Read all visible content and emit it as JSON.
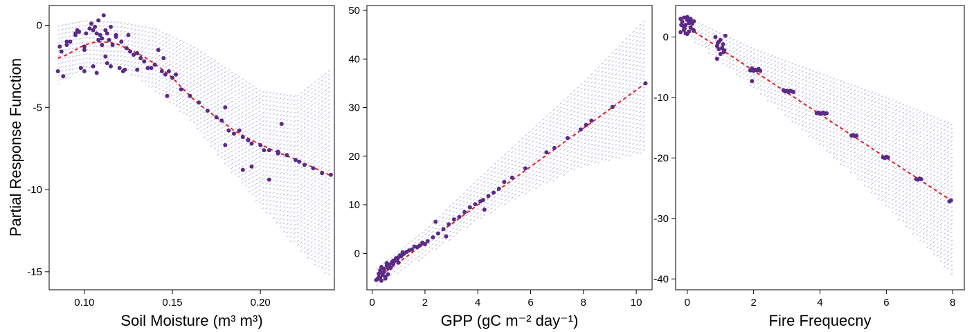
{
  "ylabel": "Partial Response Function",
  "colors": {
    "point": "#5b2a86",
    "fit": "#e02020",
    "band": "#8a86c4",
    "frame": "#000000"
  },
  "chart_data": [
    {
      "type": "scatter",
      "xlabel": "Soil Moisture (m³ m³)",
      "xlim": [
        0.08,
        0.242
      ],
      "ylim": [
        -16.1,
        1.2
      ],
      "xticks": [
        0.1,
        0.15,
        0.2
      ],
      "xtick_labels": [
        "0.10",
        "0.15",
        "0.20"
      ],
      "yticks": [
        0,
        -5,
        -10,
        -15
      ],
      "ytick_labels": [
        "0",
        "-5",
        "-10",
        "-15"
      ],
      "fit": {
        "x": [
          0.085,
          0.09,
          0.095,
          0.1,
          0.105,
          0.11,
          0.115,
          0.12,
          0.125,
          0.13,
          0.135,
          0.14,
          0.145,
          0.15,
          0.155,
          0.16,
          0.165,
          0.17,
          0.175,
          0.18,
          0.185,
          0.19,
          0.195,
          0.2,
          0.205,
          0.21,
          0.215,
          0.22,
          0.225,
          0.23,
          0.235,
          0.24
        ],
        "y": [
          -2.0,
          -1.8,
          -1.5,
          -1.2,
          -1.05,
          -1.0,
          -1.05,
          -1.2,
          -1.45,
          -1.7,
          -2.0,
          -2.35,
          -2.75,
          -3.2,
          -3.75,
          -4.3,
          -4.8,
          -5.2,
          -5.6,
          -6.0,
          -6.4,
          -6.7,
          -7.0,
          -7.25,
          -7.5,
          -7.75,
          -7.95,
          -8.15,
          -8.4,
          -8.65,
          -8.9,
          -9.15
        ]
      },
      "band": {
        "x": [
          0.085,
          0.1,
          0.12,
          0.14,
          0.16,
          0.18,
          0.2,
          0.22,
          0.24
        ],
        "upper": [
          0.0,
          0.3,
          0.2,
          -0.2,
          -1.2,
          -2.6,
          -4.0,
          -4.3,
          -2.6
        ],
        "lower": [
          -3.6,
          -2.5,
          -2.5,
          -4.0,
          -5.8,
          -8.5,
          -11.0,
          -13.5,
          -15.5
        ]
      },
      "points": {
        "x": [
          0.085,
          0.086,
          0.087,
          0.088,
          0.09,
          0.092,
          0.095,
          0.096,
          0.098,
          0.1,
          0.101,
          0.103,
          0.104,
          0.105,
          0.106,
          0.107,
          0.108,
          0.109,
          0.11,
          0.111,
          0.112,
          0.113,
          0.114,
          0.115,
          0.116,
          0.118,
          0.12,
          0.121,
          0.122,
          0.124,
          0.126,
          0.128,
          0.13,
          0.132,
          0.134,
          0.136,
          0.138,
          0.14,
          0.142,
          0.144,
          0.146,
          0.148,
          0.15,
          0.152,
          0.155,
          0.16,
          0.165,
          0.17,
          0.175,
          0.178,
          0.18,
          0.182,
          0.185,
          0.188,
          0.19,
          0.193,
          0.195,
          0.2,
          0.202,
          0.205,
          0.21,
          0.212,
          0.215,
          0.22,
          0.225,
          0.23,
          0.235,
          0.24,
          0.09,
          0.095,
          0.1,
          0.11,
          0.115,
          0.125,
          0.13,
          0.145,
          0.105,
          0.107,
          0.113,
          0.097,
          0.1,
          0.108,
          0.112,
          0.118,
          0.123,
          0.147,
          0.18,
          0.19,
          0.21,
          0.195,
          0.205,
          0.222
        ],
        "y": [
          -2.8,
          -1.3,
          -1.6,
          -3.1,
          -1.2,
          -1.0,
          -0.6,
          -0.3,
          -2.6,
          -2.8,
          -0.5,
          -0.2,
          0.1,
          -0.3,
          -0.1,
          -0.5,
          0.3,
          -0.6,
          -0.8,
          0.6,
          -0.3,
          -0.5,
          -0.9,
          -0.1,
          -1.2,
          -0.6,
          -2.6,
          -1.0,
          -2.8,
          -1.4,
          -1.6,
          -1.8,
          -1.7,
          -2.0,
          -2.2,
          -2.6,
          -2.6,
          -2.4,
          -1.5,
          -2.8,
          -3.0,
          -2.8,
          -3.2,
          -3.0,
          -3.9,
          -4.3,
          -4.7,
          -5.2,
          -5.6,
          -5.8,
          -7.3,
          -6.4,
          -6.6,
          -6.4,
          -6.8,
          -7.0,
          -7.2,
          -7.3,
          -7.6,
          -7.6,
          -7.8,
          -6.0,
          -7.9,
          -8.2,
          -8.5,
          -8.7,
          -9.0,
          -9.1,
          -1.0,
          -0.5,
          -1.5,
          -1.2,
          -2.5,
          -0.6,
          -2.7,
          -2.0,
          -2.5,
          -2.9,
          -2.3,
          -0.4,
          -1.3,
          -0.9,
          -1.9,
          -0.7,
          -2.7,
          -4.3,
          -5.0,
          -8.8,
          -7.7,
          -8.6,
          -9.4,
          -8.3
        ]
      }
    },
    {
      "type": "scatter",
      "xlabel": "GPP (gC m⁻² day⁻¹)",
      "xlim": [
        -0.2,
        10.6
      ],
      "ylim": [
        -7.5,
        51.0
      ],
      "xticks": [
        0,
        2,
        4,
        6,
        8,
        10
      ],
      "xtick_labels": [
        "0",
        "2",
        "4",
        "6",
        "8",
        "10"
      ],
      "yticks": [
        0,
        10,
        20,
        30,
        40,
        50
      ],
      "ytick_labels": [
        "0",
        "10",
        "20",
        "30",
        "40",
        "50"
      ],
      "fit": {
        "x": [
          0.15,
          10.35
        ],
        "y": [
          -5.2,
          35.0
        ]
      },
      "band": {
        "x": [
          0.15,
          2,
          4,
          6,
          8,
          10.35
        ],
        "upper": [
          -3.0,
          5.0,
          15.5,
          25.5,
          35.5,
          48.5
        ],
        "lower": [
          -6.5,
          -0.5,
          7.0,
          13.0,
          18.0,
          21.0
        ]
      },
      "points": {
        "x": [
          0.15,
          0.2,
          0.25,
          0.3,
          0.35,
          0.4,
          0.45,
          0.5,
          0.55,
          0.6,
          0.65,
          0.7,
          0.75,
          0.8,
          0.85,
          0.9,
          0.95,
          1.0,
          1.05,
          1.1,
          1.15,
          1.2,
          1.3,
          1.4,
          1.5,
          1.6,
          1.7,
          1.8,
          1.9,
          2.0,
          2.1,
          2.3,
          2.5,
          2.7,
          2.9,
          3.1,
          3.3,
          3.5,
          3.7,
          3.9,
          4.1,
          4.2,
          4.4,
          4.6,
          4.8,
          5.0,
          5.3,
          5.8,
          6.6,
          6.9,
          7.4,
          7.9,
          8.1,
          8.3,
          9.1,
          10.35,
          0.3,
          0.45,
          0.6,
          0.7,
          0.5,
          0.4,
          0.55,
          0.8,
          1.0,
          1.2,
          0.35,
          0.25,
          2.4,
          2.8,
          4.25
        ],
        "y": [
          -5.5,
          -5.3,
          -4.9,
          -5.0,
          -2.8,
          -4.5,
          -3.2,
          -4.8,
          -2.5,
          -3.0,
          -2.3,
          -2.9,
          -1.8,
          -2.2,
          -1.6,
          -1.0,
          -1.3,
          -0.8,
          -0.4,
          -0.6,
          0.2,
          -0.1,
          0.3,
          0.6,
          0.8,
          1.4,
          1.3,
          1.6,
          2.2,
          1.9,
          2.5,
          3.3,
          4.1,
          5.0,
          6.0,
          7.0,
          7.5,
          8.5,
          9.5,
          10.1,
          10.7,
          11.0,
          11.8,
          12.5,
          13.3,
          14.7,
          15.6,
          17.5,
          20.8,
          21.7,
          23.7,
          25.5,
          26.4,
          27.3,
          30.1,
          35.0,
          -3.5,
          -3.8,
          -4.3,
          -3.0,
          -5.2,
          -4.0,
          -2.0,
          -1.5,
          -1.9,
          0.0,
          -5.6,
          -4.2,
          6.5,
          3.5,
          9.0
        ]
      }
    },
    {
      "type": "scatter",
      "xlabel": "Fire Frequecny",
      "xlim": [
        -0.35,
        8.35
      ],
      "ylim": [
        -41.8,
        5.2
      ],
      "xticks": [
        0,
        2,
        4,
        6,
        8
      ],
      "xtick_labels": [
        "0",
        "2",
        "4",
        "6",
        "8"
      ],
      "yticks": [
        0,
        -10,
        -20,
        -30,
        -40
      ],
      "ytick_labels": [
        "0",
        "-10",
        "-20",
        "-30",
        "-40"
      ],
      "fit": {
        "x": [
          -0.1,
          8.0
        ],
        "y": [
          2.0,
          -27.2
        ]
      },
      "band": {
        "x": [
          -0.1,
          2,
          4,
          6,
          8.0
        ],
        "upper": [
          3.5,
          -2.0,
          -6.0,
          -10.0,
          -14.5
        ],
        "lower": [
          0.5,
          -8.5,
          -18.0,
          -28.0,
          -39.5
        ]
      },
      "points": {
        "x": [
          -0.2,
          -0.15,
          -0.1,
          -0.05,
          0.0,
          0.05,
          0.1,
          0.15,
          0.2,
          -0.2,
          -0.1,
          0.0,
          0.1,
          0.2,
          -0.18,
          -0.08,
          0.05,
          0.12,
          -0.12,
          0.0,
          0.18,
          -0.05,
          0.08,
          0.85,
          0.9,
          0.95,
          1.0,
          1.05,
          1.1,
          1.15,
          0.9,
          1.0,
          1.08,
          0.95,
          1.12,
          0.92,
          1.9,
          1.95,
          2.0,
          2.05,
          2.1,
          2.15,
          2.2,
          1.95,
          2.9,
          2.95,
          3.0,
          3.05,
          3.1,
          3.15,
          3.2,
          3.9,
          3.95,
          4.0,
          4.05,
          4.1,
          4.15,
          4.2,
          4.95,
          5.0,
          5.05,
          5.1,
          5.9,
          5.95,
          6.0,
          6.05,
          6.9,
          6.95,
          7.0,
          7.05,
          7.9,
          7.95
        ],
        "y": [
          3.0,
          2.5,
          3.2,
          2.0,
          2.8,
          2.3,
          3.0,
          2.2,
          2.6,
          0.8,
          1.2,
          0.5,
          1.6,
          1.0,
          2.0,
          1.4,
          0.9,
          2.4,
          1.8,
          3.3,
          1.2,
          0.6,
          2.9,
          0.0,
          -1.5,
          -2.0,
          -0.5,
          -1.8,
          -2.5,
          0.2,
          -3.6,
          -2.8,
          -1.2,
          -0.8,
          -2.2,
          -1.0,
          -5.5,
          -5.2,
          -5.6,
          -5.4,
          -5.5,
          -5.3,
          -5.6,
          -7.3,
          -8.8,
          -9.0,
          -8.9,
          -9.1,
          -8.9,
          -9.0,
          -9.1,
          -12.6,
          -12.5,
          -12.7,
          -12.6,
          -12.5,
          -12.7,
          -12.6,
          -16.3,
          -16.2,
          -16.4,
          -16.3,
          -19.9,
          -20.0,
          -19.8,
          -19.9,
          -23.5,
          -23.6,
          -23.4,
          -23.5,
          -27.2,
          -27.0
        ]
      }
    }
  ]
}
